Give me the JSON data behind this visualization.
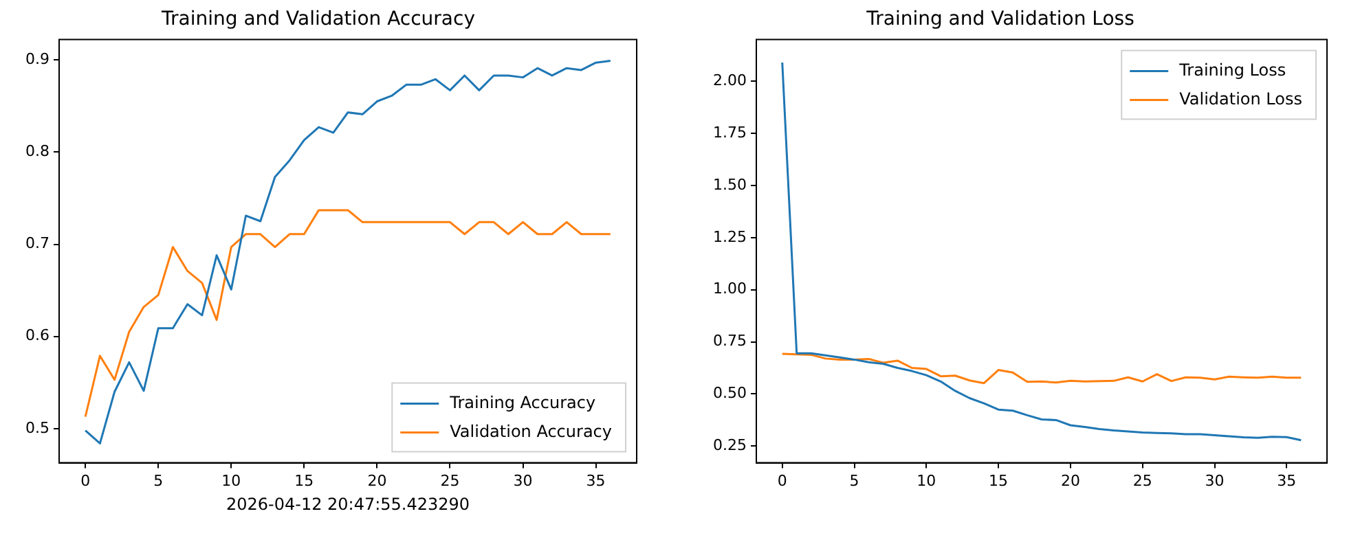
{
  "chart_data": [
    {
      "type": "line",
      "title": "Training and Validation Accuracy",
      "annotations": [
        "2026-04-12 20:47:55.423290"
      ],
      "x": [
        0,
        1,
        2,
        3,
        4,
        5,
        6,
        7,
        8,
        9,
        10,
        11,
        12,
        13,
        14,
        15,
        16,
        17,
        18,
        19,
        20,
        21,
        22,
        23,
        24,
        25,
        26,
        27,
        28,
        29,
        30,
        31,
        32,
        33,
        34,
        35,
        36
      ],
      "series": [
        {
          "name": "Training Accuracy",
          "color": "#1f77b4",
          "values": [
            0.498,
            0.484,
            0.54,
            0.572,
            0.541,
            0.609,
            0.609,
            0.635,
            0.623,
            0.688,
            0.651,
            0.731,
            0.725,
            0.773,
            0.791,
            0.813,
            0.827,
            0.821,
            0.843,
            0.841,
            0.855,
            0.861,
            0.873,
            0.873,
            0.879,
            0.867,
            0.883,
            0.867,
            0.883,
            0.883,
            0.881,
            0.891,
            0.883,
            0.891,
            0.889,
            0.897,
            0.899
          ]
        },
        {
          "name": "Validation Accuracy",
          "color": "#ff7f0e",
          "values": [
            0.513,
            0.579,
            0.553,
            0.605,
            0.632,
            0.645,
            0.697,
            0.671,
            0.658,
            0.618,
            0.697,
            0.711,
            0.711,
            0.697,
            0.711,
            0.711,
            0.737,
            0.737,
            0.737,
            0.724,
            0.724,
            0.724,
            0.724,
            0.724,
            0.724,
            0.724,
            0.711,
            0.724,
            0.724,
            0.711,
            0.724,
            0.711,
            0.711,
            0.724,
            0.711,
            0.711,
            0.711
          ]
        }
      ],
      "xlim": [
        -1.8,
        37.8
      ],
      "xticks": [
        0,
        5,
        10,
        15,
        20,
        25,
        30,
        35
      ],
      "ylim": [
        0.463,
        0.922
      ],
      "yticks": [
        0.5,
        0.6,
        0.7,
        0.8,
        0.9
      ],
      "grid": false,
      "legend": "bottom right",
      "marker": "none",
      "line_style": "solid"
    },
    {
      "type": "line",
      "title": "Training and Validation Loss",
      "x": [
        0,
        1,
        2,
        3,
        4,
        5,
        6,
        7,
        8,
        9,
        10,
        11,
        12,
        13,
        14,
        15,
        16,
        17,
        18,
        19,
        20,
        21,
        22,
        23,
        24,
        25,
        26,
        27,
        28,
        29,
        30,
        31,
        32,
        33,
        34,
        35,
        36
      ],
      "series": [
        {
          "name": "Training Loss",
          "color": "#1f77b4",
          "values": [
            2.09,
            0.695,
            0.695,
            0.685,
            0.675,
            0.665,
            0.652,
            0.645,
            0.625,
            0.61,
            0.59,
            0.56,
            0.515,
            0.48,
            0.455,
            0.425,
            0.42,
            0.398,
            0.378,
            0.375,
            0.35,
            0.342,
            0.332,
            0.325,
            0.32,
            0.315,
            0.313,
            0.311,
            0.307,
            0.307,
            0.302,
            0.297,
            0.292,
            0.29,
            0.295,
            0.293,
            0.278
          ]
        },
        {
          "name": "Validation Loss",
          "color": "#ff7f0e",
          "values": [
            0.693,
            0.69,
            0.688,
            0.67,
            0.665,
            0.665,
            0.668,
            0.65,
            0.66,
            0.625,
            0.62,
            0.585,
            0.588,
            0.565,
            0.552,
            0.615,
            0.603,
            0.558,
            0.56,
            0.555,
            0.563,
            0.56,
            0.562,
            0.563,
            0.58,
            0.56,
            0.595,
            0.562,
            0.58,
            0.578,
            0.57,
            0.583,
            0.58,
            0.578,
            0.583,
            0.578,
            0.578
          ]
        }
      ],
      "xlim": [
        -1.8,
        37.8
      ],
      "xticks": [
        0,
        5,
        10,
        15,
        20,
        25,
        30,
        35
      ],
      "ylim": [
        0.17,
        2.2
      ],
      "yticks": [
        0.25,
        {
          "value": 0.5,
          "label": "0.50"
        },
        0.75,
        {
          "value": 1,
          "label": "1.00"
        },
        1.25,
        {
          "value": 1.5,
          "label": "1.50"
        },
        1.75,
        {
          "value": 2,
          "label": "2.00"
        }
      ],
      "grid": false,
      "legend": "top right",
      "marker": "none",
      "line_style": "solid"
    }
  ]
}
